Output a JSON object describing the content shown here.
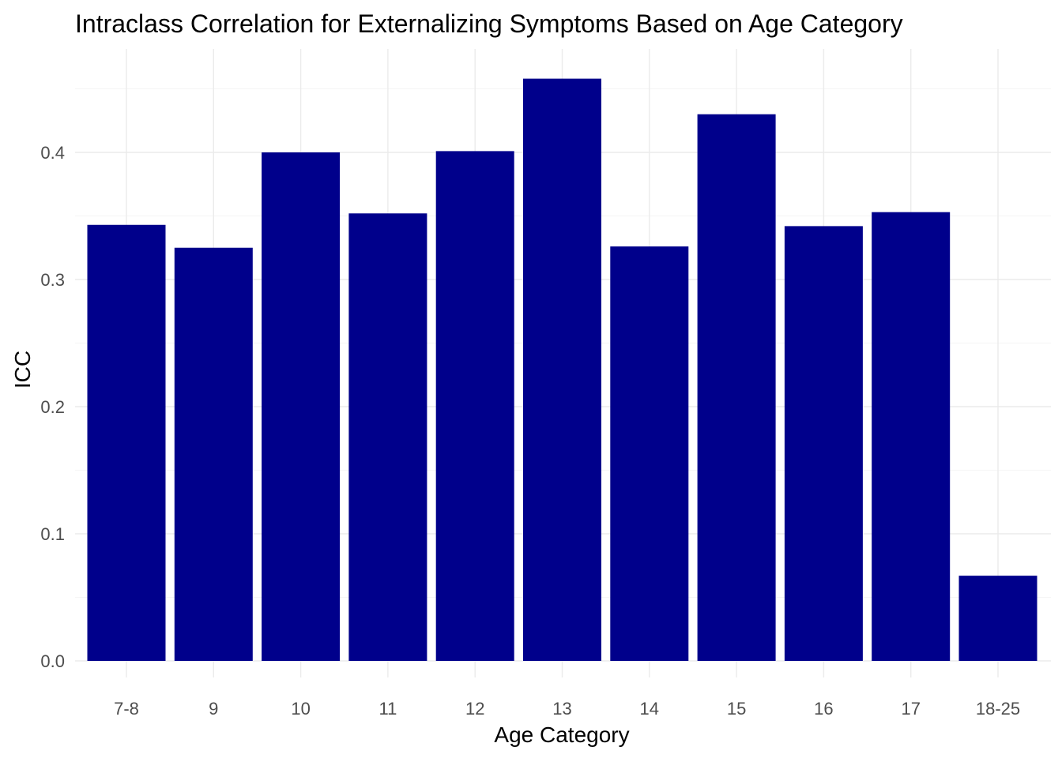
{
  "chart_data": {
    "type": "bar",
    "title": "Intraclass Correlation for Externalizing Symptoms Based on Age Category",
    "xlabel": "Age Category",
    "ylabel": "ICC",
    "categories": [
      "7-8",
      "9",
      "10",
      "11",
      "12",
      "13",
      "14",
      "15",
      "16",
      "17",
      "18-25"
    ],
    "values": [
      0.343,
      0.325,
      0.4,
      0.352,
      0.401,
      0.458,
      0.326,
      0.43,
      0.342,
      0.353,
      0.067
    ],
    "ylim": [
      0,
      0.46
    ],
    "yticks": [
      "0.0",
      "0.1",
      "0.2",
      "0.3",
      "0.4"
    ],
    "ytick_values": [
      0,
      0.1,
      0.2,
      0.3,
      0.4
    ],
    "grid": true,
    "bar_color": "#00008B"
  }
}
